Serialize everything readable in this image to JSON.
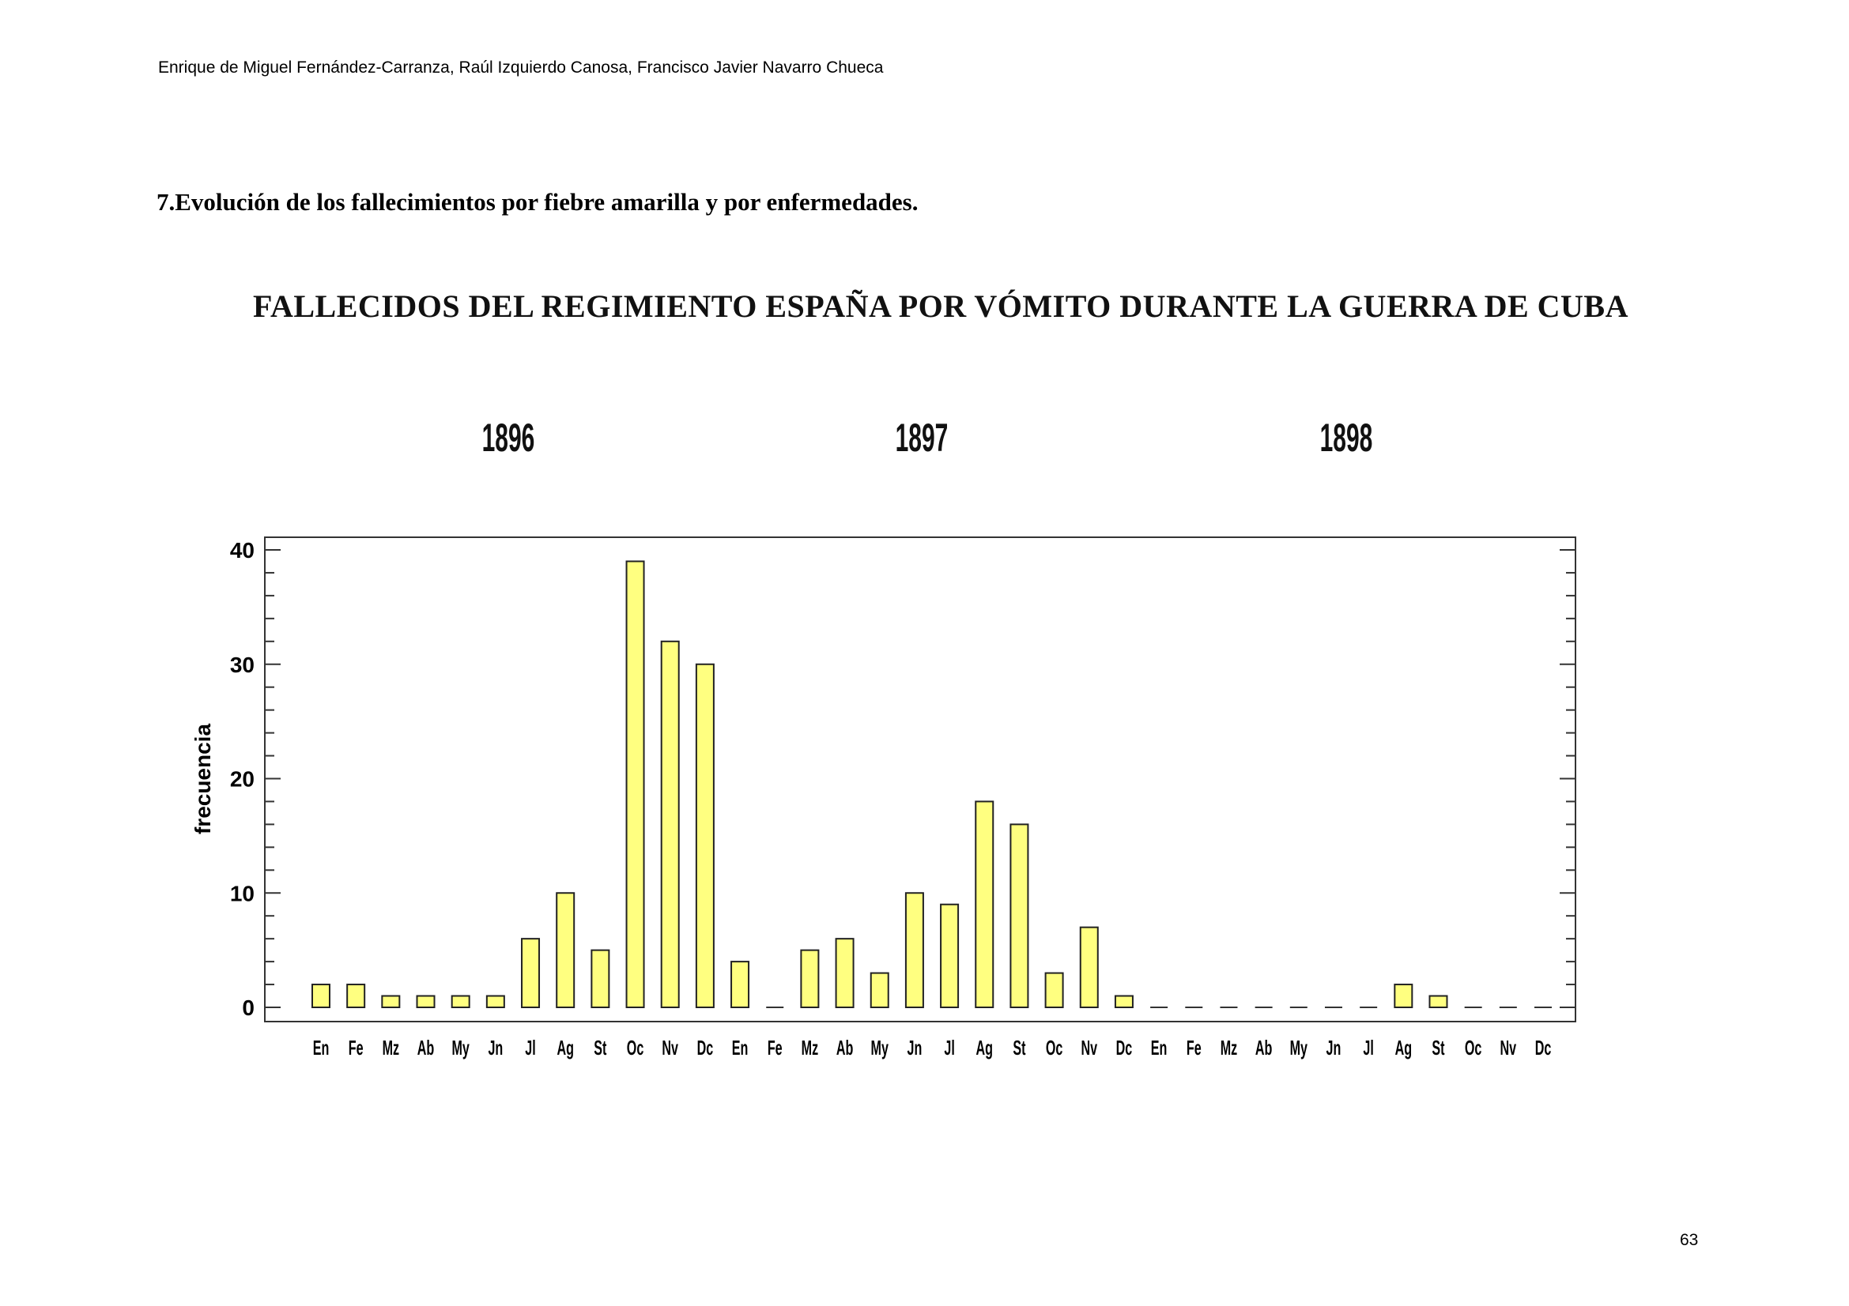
{
  "header": {
    "authors": "Enrique de Miguel Fernández-Carranza, Raúl Izquierdo Canosa, Francisco Javier Navarro Chueca"
  },
  "section_title": "7.Evolución de los fallecimientos por fiebre amarilla y por enfermedades.",
  "page_number": "63",
  "chart_data": {
    "type": "bar",
    "title": "FALLECIDOS DEL REGIMIENTO ESPAÑA POR VÓMITO DURANTE LA GUERRA DE CUBA",
    "year_labels": [
      "1896",
      "1897",
      "1898"
    ],
    "xlabel": "",
    "ylabel": "frecuencia",
    "ylim": [
      0,
      40
    ],
    "yticks": [
      0,
      10,
      20,
      30,
      40
    ],
    "grid": false,
    "bar_color": "#ffff80",
    "categories": [
      "En",
      "Fe",
      "Mz",
      "Ab",
      "My",
      "Jn",
      "Jl",
      "Ag",
      "St",
      "Oc",
      "Nv",
      "Dc",
      "En",
      "Fe",
      "Mz",
      "Ab",
      "My",
      "Jn",
      "Jl",
      "Ag",
      "St",
      "Oc",
      "Nv",
      "Dc",
      "En",
      "Fe",
      "Mz",
      "Ab",
      "My",
      "Jn",
      "Jl",
      "Ag",
      "St",
      "Oc",
      "Nv",
      "Dc"
    ],
    "values": [
      2,
      2,
      1,
      1,
      1,
      1,
      6,
      10,
      5,
      39,
      32,
      30,
      4,
      0,
      5,
      6,
      3,
      10,
      9,
      18,
      16,
      3,
      7,
      1,
      0,
      0,
      0,
      0,
      0,
      0,
      0,
      2,
      1,
      0,
      0,
      0
    ]
  }
}
